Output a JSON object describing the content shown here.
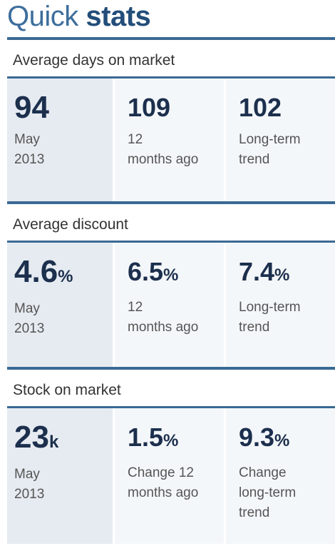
{
  "title": {
    "light": "Quick",
    "bold": "stats"
  },
  "sections": [
    {
      "label": "Average days on market",
      "stats": [
        {
          "value": 94,
          "caption": [
            "May",
            "2013"
          ]
        },
        {
          "value": 109,
          "caption": [
            "12",
            "months ago"
          ]
        },
        {
          "value": 102,
          "caption": [
            "Long-term",
            "trend"
          ]
        }
      ]
    },
    {
      "label": "Average discount",
      "stats": [
        {
          "value": 4.6,
          "unit": "%",
          "caption": [
            "May",
            "2013"
          ]
        },
        {
          "value": 6.5,
          "unit": "%",
          "caption": [
            "12",
            "months ago"
          ]
        },
        {
          "value": 7.4,
          "unit": "%",
          "caption": [
            "Long-term",
            "trend"
          ]
        }
      ]
    },
    {
      "label": "Stock on market",
      "stats": [
        {
          "value": 23,
          "unit": "k",
          "caption": [
            "May",
            "2013"
          ]
        },
        {
          "value": 1.5,
          "unit": "%",
          "caption": [
            "Change 12",
            "months ago"
          ]
        },
        {
          "value": 9.3,
          "unit": "%",
          "caption": [
            "Change",
            "long-term",
            "trend"
          ]
        }
      ]
    }
  ]
}
